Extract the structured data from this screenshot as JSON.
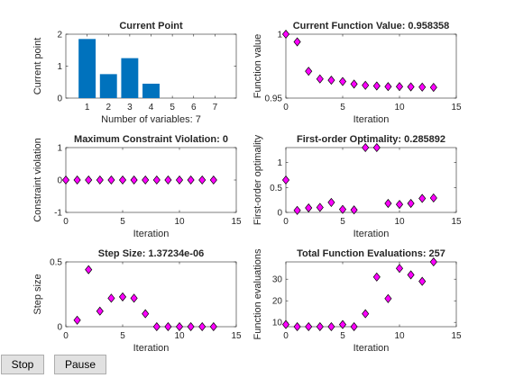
{
  "buttons": {
    "stop": "Stop",
    "pause": "Pause"
  },
  "colors": {
    "bar": "#0072bd",
    "marker_fill": "#ff00ff",
    "marker_stroke": "#000000",
    "axis": "#262626"
  },
  "chart_data": [
    {
      "type": "bar",
      "title": "Current Point",
      "xlabel": "Number of variables: 7",
      "ylabel": "Current point",
      "categories": [
        "1",
        "2",
        "3",
        "4",
        "5",
        "6",
        "7"
      ],
      "values": [
        1.85,
        0.75,
        1.25,
        0.45,
        0,
        0,
        0
      ],
      "xlim": [
        0,
        8
      ],
      "ylim": [
        0,
        2
      ],
      "xticks": [
        1,
        2,
        3,
        4,
        5,
        6,
        7
      ],
      "xtick_labels": [
        "1",
        "2",
        "3",
        "4",
        "5",
        "6",
        "7"
      ],
      "yticks": [
        0,
        1,
        2
      ],
      "ytick_labels": [
        "0",
        "1",
        "2"
      ]
    },
    {
      "type": "scatter",
      "title": "Current Function Value: 0.958358",
      "xlabel": "Iteration",
      "ylabel": "Function value",
      "x": [
        0,
        1,
        2,
        3,
        4,
        5,
        6,
        7,
        8,
        9,
        10,
        11,
        12,
        13
      ],
      "y": [
        1.0,
        0.994,
        0.971,
        0.965,
        0.964,
        0.963,
        0.961,
        0.96,
        0.9595,
        0.959,
        0.959,
        0.9588,
        0.9586,
        0.9584
      ],
      "xlim": [
        0,
        15
      ],
      "ylim": [
        0.95,
        1.0
      ],
      "xticks": [
        0,
        5,
        10,
        15
      ],
      "xtick_labels": [
        "0",
        "5",
        "10",
        "15"
      ],
      "yticks": [
        0.95,
        1.0
      ],
      "ytick_labels": [
        "0.95",
        "1"
      ]
    },
    {
      "type": "scatter",
      "title": "Maximum Constraint Violation: 0",
      "xlabel": "Iteration",
      "ylabel": "Constraint violation",
      "x": [
        0,
        1,
        2,
        3,
        4,
        5,
        6,
        7,
        8,
        9,
        10,
        11,
        12,
        13
      ],
      "y": [
        0,
        0,
        0,
        0,
        0,
        0,
        0,
        0,
        0,
        0,
        0,
        0,
        0,
        0
      ],
      "xlim": [
        0,
        15
      ],
      "ylim": [
        -1,
        1
      ],
      "xticks": [
        0,
        5,
        10,
        15
      ],
      "xtick_labels": [
        "0",
        "5",
        "10",
        "15"
      ],
      "yticks": [
        -1,
        0,
        1
      ],
      "ytick_labels": [
        "-1",
        "0",
        "1"
      ]
    },
    {
      "type": "scatter",
      "title": "First-order Optimality: 0.285892",
      "xlabel": "Iteration",
      "ylabel": "First-order optimality",
      "x": [
        0,
        1,
        2,
        3,
        4,
        5,
        6,
        7,
        8,
        9,
        10,
        11,
        12,
        13
      ],
      "y": [
        0.65,
        0.04,
        0.09,
        0.1,
        0.2,
        0.06,
        0.05,
        1.3,
        1.3,
        0.18,
        0.16,
        0.18,
        0.28,
        0.29
      ],
      "xlim": [
        0,
        15
      ],
      "ylim": [
        0,
        1.3
      ],
      "xticks": [
        0,
        5,
        10,
        15
      ],
      "xtick_labels": [
        "0",
        "5",
        "10",
        "15"
      ],
      "yticks": [
        0,
        0.5,
        1
      ],
      "ytick_labels": [
        "0",
        "0.5",
        "1"
      ]
    },
    {
      "type": "scatter",
      "title": "Step Size: 1.37234e-06",
      "xlabel": "Iteration",
      "ylabel": "Step size",
      "x": [
        1,
        2,
        3,
        4,
        5,
        6,
        7,
        8,
        9,
        10,
        11,
        12,
        13
      ],
      "y": [
        0.05,
        0.44,
        0.12,
        0.22,
        0.23,
        0.22,
        0.1,
        0.0,
        0.0,
        0.0,
        0.0,
        0.0,
        0.0
      ],
      "xlim": [
        0,
        15
      ],
      "ylim": [
        0,
        0.5
      ],
      "xticks": [
        0,
        5,
        10,
        15
      ],
      "xtick_labels": [
        "0",
        "5",
        "10",
        "15"
      ],
      "yticks": [
        0,
        0.5
      ],
      "ytick_labels": [
        "0",
        "0.5"
      ]
    },
    {
      "type": "scatter",
      "title": "Total Function Evaluations: 257",
      "xlabel": "Iteration",
      "ylabel": "Function evaluations",
      "x": [
        0,
        1,
        2,
        3,
        4,
        5,
        6,
        7,
        8,
        9,
        10,
        11,
        12,
        13
      ],
      "y": [
        9,
        8,
        8,
        8,
        8,
        9,
        8,
        14,
        31,
        21,
        35,
        32,
        29,
        38
      ],
      "xlim": [
        0,
        15
      ],
      "ylim": [
        8,
        38
      ],
      "xticks": [
        0,
        5,
        10,
        15
      ],
      "xtick_labels": [
        "0",
        "5",
        "10",
        "15"
      ],
      "yticks": [
        10,
        20,
        30
      ],
      "ytick_labels": [
        "10",
        "20",
        "30"
      ]
    }
  ]
}
